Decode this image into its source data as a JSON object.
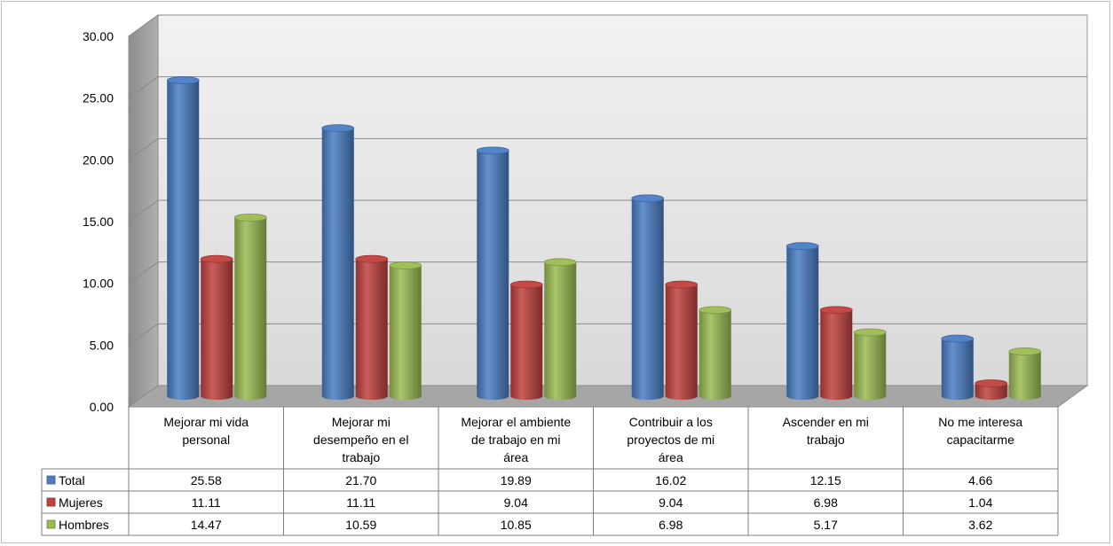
{
  "chart_data": {
    "type": "bar",
    "categories": [
      [
        "Mejorar mi vida",
        "personal"
      ],
      [
        "Mejorar mi",
        "desempeño en el",
        "trabajo"
      ],
      [
        "Mejorar el ambiente",
        "de trabajo  en mi",
        "área"
      ],
      [
        "Contribuir a los",
        "proyectos de mi",
        "área"
      ],
      [
        "Ascender en mi",
        "trabajo"
      ],
      [
        "No me interesa",
        "capacitarme"
      ]
    ],
    "series": [
      {
        "name": "Total",
        "color": "#4a7dc4",
        "values": [
          25.58,
          21.7,
          19.89,
          16.02,
          12.15,
          4.66
        ],
        "labels": [
          "25.58",
          "21.70",
          "19.89",
          "16.02",
          "12.15",
          "4.66"
        ]
      },
      {
        "name": "Mujeres",
        "color": "#c0413d",
        "values": [
          11.11,
          11.11,
          9.04,
          9.04,
          6.98,
          1.04
        ],
        "labels": [
          "11.11",
          "11.11",
          "9.04",
          "9.04",
          "6.98",
          "1.04"
        ]
      },
      {
        "name": "Hombres",
        "color": "#9bbb52",
        "values": [
          14.47,
          10.59,
          10.85,
          6.98,
          5.17,
          3.62
        ],
        "labels": [
          "14.47",
          "10.59",
          "10.85",
          "6.98",
          "5.17",
          "3.62"
        ]
      }
    ],
    "ylim": [
      0,
      30
    ],
    "yticks": [
      "0.00",
      "5.00",
      "10.00",
      "15.00",
      "20.00",
      "25.00",
      "30.00"
    ],
    "grid": true,
    "legend": "data-table",
    "title": "",
    "xlabel": "",
    "ylabel": ""
  }
}
